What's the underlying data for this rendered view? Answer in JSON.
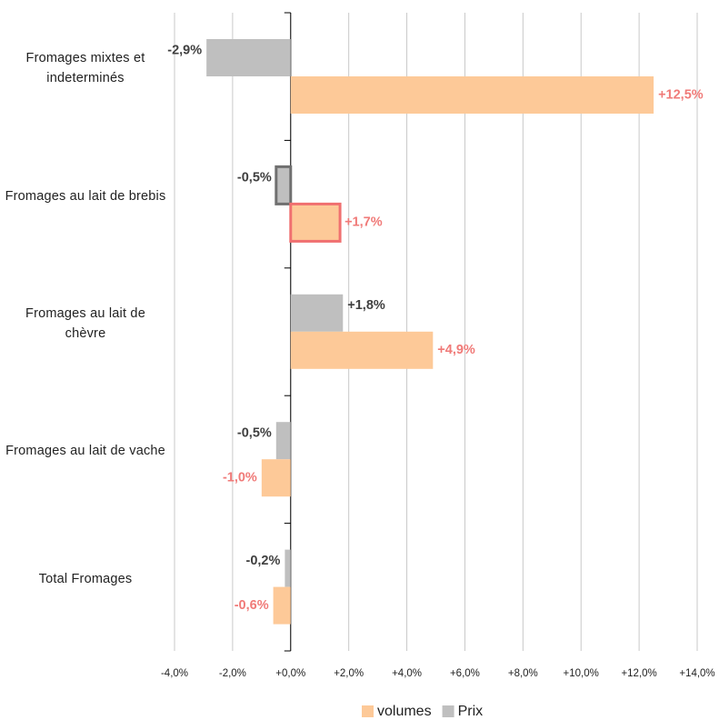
{
  "chart_data": {
    "type": "hbar",
    "categories": [
      "Fromages mixtes et indeterminés",
      "Fromages au lait de brebis",
      "Fromages au lait de chèvre",
      "Fromages au lait de vache",
      "Total Fromages"
    ],
    "series": [
      {
        "name": "volumes",
        "color": "#fdc998",
        "label_color": "#f07a78",
        "outline": "#f07070",
        "values": [
          12.5,
          1.7,
          4.9,
          -1.0,
          -0.6
        ],
        "value_labels": [
          "+12,5%",
          "+1,7%",
          "+4,9%",
          "-1,0%",
          "-0,6%"
        ]
      },
      {
        "name": "Prix",
        "color": "#bfbfbf",
        "label_color": "#404040",
        "outline": "#707070",
        "values": [
          -2.9,
          -0.5,
          1.8,
          -0.5,
          -0.2
        ],
        "value_labels": [
          "-2,9%",
          "-0,5%",
          "+1,8%",
          "-0,5%",
          "-0,2%"
        ]
      }
    ],
    "highlight_index": 1,
    "xlim": [
      -4,
      14
    ],
    "xticks": [
      {
        "value": -4,
        "label": "-4,0%"
      },
      {
        "value": -2,
        "label": "-2,0%"
      },
      {
        "value": 0,
        "label": "+0,0%"
      },
      {
        "value": 2,
        "label": "+2,0%"
      },
      {
        "value": 4,
        "label": "+4,0%"
      },
      {
        "value": 6,
        "label": "+6,0%"
      },
      {
        "value": 8,
        "label": "+8,0%"
      },
      {
        "value": 10,
        "label": "+10,0%"
      },
      {
        "value": 12,
        "label": "+12,0%"
      },
      {
        "value": 14,
        "label": "+14,0%"
      }
    ],
    "grid": true
  }
}
